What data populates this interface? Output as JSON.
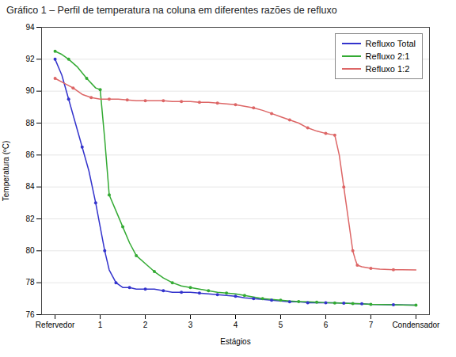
{
  "chart_data": {
    "type": "line",
    "title": "Gráfico 1 – Perfil de temperatura na coluna em diferentes razões de refluxo",
    "xlabel": "Estágios",
    "ylabel": "Temperatura (ºC)",
    "xlim": [
      -0.3,
      8.3
    ],
    "xticks": [
      {
        "value": 0,
        "label": "Refervedor"
      },
      1,
      2,
      3,
      4,
      5,
      6,
      7,
      {
        "value": 8,
        "label": "Condensador"
      }
    ],
    "ylim": [
      76,
      94
    ],
    "yticks": [
      76,
      78,
      80,
      82,
      84,
      86,
      88,
      90,
      92,
      94
    ],
    "grid": true,
    "legend": "upper right",
    "marker": "circle",
    "series": [
      {
        "name": "Refluxo Total",
        "color": "#3333cc",
        "x": [
          0,
          0.15,
          0.3,
          0.45,
          0.6,
          0.75,
          0.9,
          1.0,
          1.1,
          1.2,
          1.35,
          1.5,
          1.65,
          1.8,
          2.0,
          2.2,
          2.4,
          2.6,
          2.8,
          3.0,
          3.2,
          3.4,
          3.6,
          3.8,
          4.0,
          4.2,
          4.4,
          4.6,
          4.8,
          5.0,
          5.2,
          5.4,
          5.6,
          5.8,
          6.0,
          6.2,
          6.4,
          6.6,
          6.8,
          7.0,
          7.5,
          8.0
        ],
        "values": [
          92.0,
          91.0,
          89.5,
          88.0,
          86.5,
          85.0,
          83.0,
          81.5,
          80.0,
          78.8,
          78.0,
          77.7,
          77.7,
          77.6,
          77.6,
          77.6,
          77.5,
          77.4,
          77.4,
          77.4,
          77.35,
          77.3,
          77.25,
          77.2,
          77.15,
          77.05,
          77.0,
          76.95,
          76.9,
          76.85,
          76.8,
          76.8,
          76.75,
          76.75,
          76.75,
          76.75,
          76.72,
          76.7,
          76.68,
          76.65,
          76.62,
          76.6
        ]
      },
      {
        "name": "Refluxo 2:1",
        "color": "#33aa33",
        "x": [
          0,
          0.15,
          0.3,
          0.5,
          0.7,
          0.9,
          1.0,
          1.1,
          1.2,
          1.35,
          1.5,
          1.65,
          1.8,
          2.0,
          2.2,
          2.4,
          2.6,
          2.8,
          3.0,
          3.2,
          3.4,
          3.6,
          3.8,
          4.0,
          4.2,
          4.4,
          4.6,
          4.8,
          5.0,
          5.2,
          5.4,
          5.6,
          5.8,
          6.0,
          6.2,
          6.4,
          6.6,
          6.8,
          7.0,
          7.5,
          8.0
        ],
        "values": [
          92.5,
          92.3,
          92.0,
          91.5,
          90.8,
          90.2,
          90.1,
          87.0,
          83.5,
          82.5,
          81.5,
          80.5,
          79.7,
          79.2,
          78.7,
          78.3,
          78.0,
          77.8,
          77.7,
          77.6,
          77.5,
          77.4,
          77.35,
          77.3,
          77.2,
          77.1,
          77.0,
          76.95,
          76.9,
          76.85,
          76.82,
          76.8,
          76.78,
          76.75,
          76.73,
          76.72,
          76.7,
          76.68,
          76.65,
          76.62,
          76.6
        ]
      },
      {
        "name": "Refluxo 1:2",
        "color": "#dd6666",
        "x": [
          0,
          0.2,
          0.4,
          0.6,
          0.8,
          1.0,
          1.2,
          1.4,
          1.6,
          1.8,
          2.0,
          2.2,
          2.4,
          2.6,
          2.8,
          3.0,
          3.2,
          3.4,
          3.6,
          3.8,
          4.0,
          4.2,
          4.4,
          4.6,
          4.8,
          5.0,
          5.2,
          5.4,
          5.6,
          5.8,
          6.0,
          6.1,
          6.2,
          6.3,
          6.4,
          6.5,
          6.6,
          6.65,
          6.7,
          6.8,
          7.0,
          7.2,
          7.5,
          8.0
        ],
        "values": [
          90.8,
          90.5,
          90.2,
          89.8,
          89.6,
          89.5,
          89.5,
          89.5,
          89.45,
          89.4,
          89.4,
          89.4,
          89.4,
          89.35,
          89.35,
          89.35,
          89.3,
          89.3,
          89.25,
          89.2,
          89.15,
          89.05,
          88.95,
          88.8,
          88.6,
          88.4,
          88.2,
          88.0,
          87.7,
          87.5,
          87.35,
          87.3,
          87.25,
          86.0,
          84.0,
          82.0,
          80.0,
          79.5,
          79.1,
          79.0,
          78.9,
          78.85,
          78.82,
          78.8
        ]
      }
    ]
  }
}
